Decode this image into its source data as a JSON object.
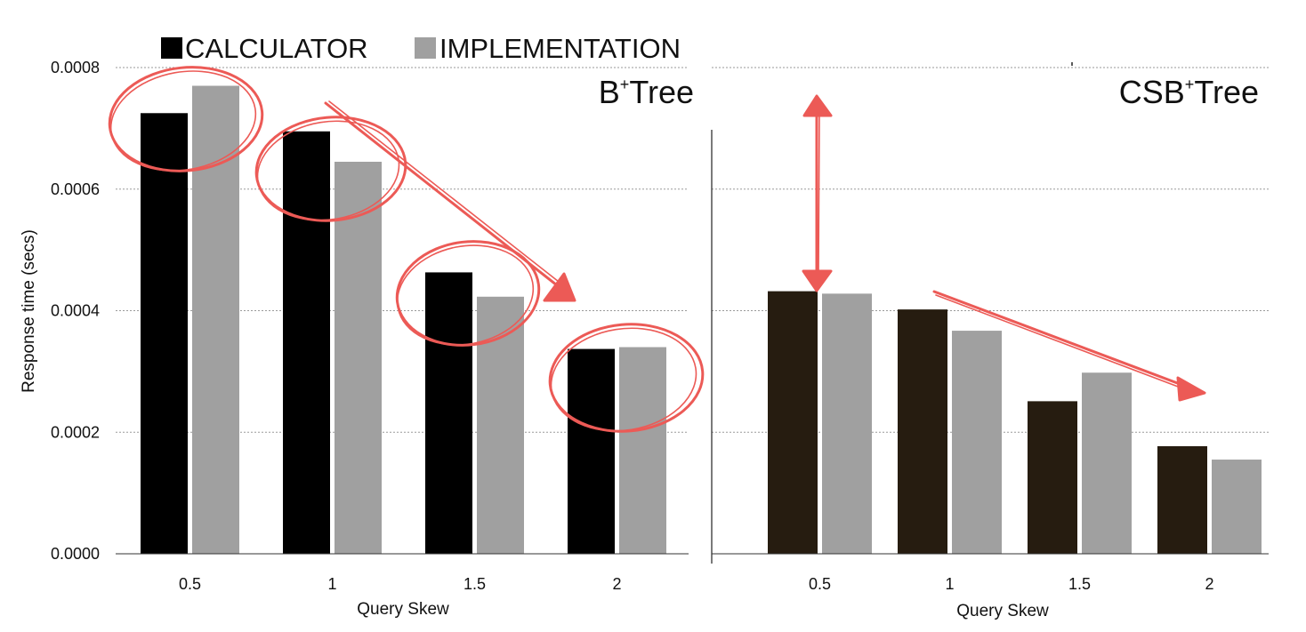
{
  "chart_data": [
    {
      "type": "bar",
      "title": "B+Tree",
      "title_main_before": "B",
      "title_sup": "+",
      "title_main_after": "Tree",
      "xlabel": "Query Skew",
      "ylabel": "Response time (secs)",
      "categories": [
        "0.5",
        "1",
        "1.5",
        "2"
      ],
      "ylim": [
        0,
        0.0008
      ],
      "yticks": [
        "0.0000",
        "0.0002",
        "0.0004",
        "0.0006",
        "0.0008"
      ],
      "grid": true,
      "series": [
        {
          "name": "CALCULATOR",
          "values": [
            0.000725,
            0.000695,
            0.000463,
            0.000337
          ]
        },
        {
          "name": "IMPLEMENTATION",
          "values": [
            0.00077,
            0.000645,
            0.000423,
            0.00034
          ]
        }
      ],
      "annotations": "red hand-drawn circles around each bar pair and a red arrow pointing down-right"
    },
    {
      "type": "bar",
      "title": "CSB+Tree",
      "title_main_before": "CSB",
      "title_sup": "+",
      "title_main_after": "Tree",
      "xlabel": "Query Skew",
      "categories": [
        "0.5",
        "1",
        "1.5",
        "2"
      ],
      "ylim": [
        0,
        0.0008
      ],
      "grid": true,
      "series": [
        {
          "name": "CALCULATOR",
          "values": [
            0.000432,
            0.000402,
            0.000251,
            0.000177
          ]
        },
        {
          "name": "IMPLEMENTATION",
          "values": [
            0.000428,
            0.000367,
            0.000298,
            0.000155
          ]
        }
      ],
      "annotations": "red double-headed vertical arrow above first bar pair and a red arrow pointing down-right"
    }
  ],
  "legend": {
    "placement": "top-left",
    "items": [
      {
        "label": "CALCULATOR",
        "color": "#000000"
      },
      {
        "label": "IMPLEMENTATION",
        "color": "#a0a0a0"
      }
    ]
  },
  "colors": {
    "calculator_left": "#000000",
    "calculator_right": "#261c10",
    "implementation": "#a0a0a0",
    "annotation": "#ec5a56",
    "grid": "#9a9a9a"
  }
}
